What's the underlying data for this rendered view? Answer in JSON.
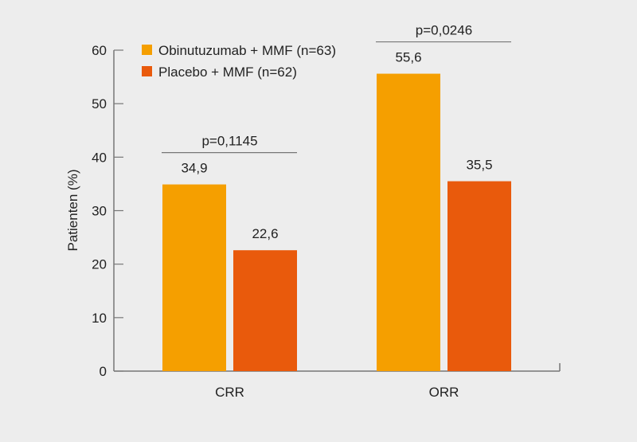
{
  "chart_data": {
    "type": "bar",
    "categories": [
      "CRR",
      "ORR"
    ],
    "series": [
      {
        "name": "Obinutuzumab + MMF (n=63)",
        "values": [
          34.9,
          55.6
        ],
        "labels": [
          "34,9",
          "55,6"
        ],
        "color": "#f59f00"
      },
      {
        "name": "Placebo + MMF (n=62)",
        "values": [
          22.6,
          35.5
        ],
        "labels": [
          "22,6",
          "35,5"
        ],
        "color": "#e95a0c"
      }
    ],
    "annotations": [
      "p=0,1145",
      "p=0,0246"
    ],
    "ylabel": "Patienten (%)",
    "xlabel": "",
    "ylim": [
      0,
      60
    ],
    "yticks": [
      0,
      10,
      20,
      30,
      40,
      50,
      60
    ],
    "grid": false,
    "legend": "top-left"
  },
  "background": "#ededed"
}
